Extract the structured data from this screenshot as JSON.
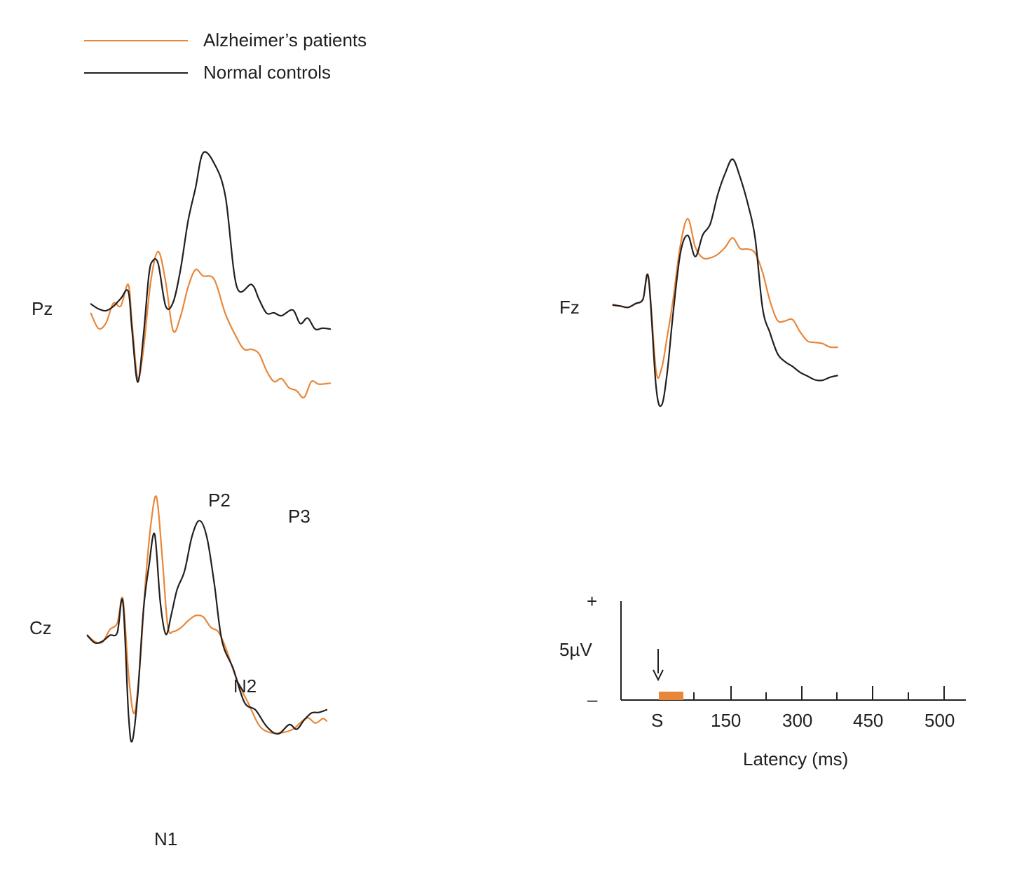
{
  "legend": [
    {
      "label": "Alzheimer’s patients",
      "color": "#e8873a"
    },
    {
      "label": "Normal controls",
      "color": "#231f20"
    }
  ],
  "chart_data": [
    {
      "type": "line",
      "channel": "Pz",
      "units": {
        "x": "ms",
        "y": "µV"
      },
      "series": [
        {
          "name": "Normal controls",
          "color": "#231f20",
          "x": [
            -100,
            -80,
            -60,
            -40,
            -20,
            0,
            10,
            25,
            40,
            55,
            65,
            80,
            100,
            120,
            140,
            160,
            180,
            200,
            230,
            260,
            290,
            330,
            350,
            370,
            390,
            410,
            440,
            460,
            480,
            500,
            520,
            540
          ],
          "y": [
            0.34,
            0.14,
            0.06,
            0.24,
            0.57,
            0.87,
            -0.73,
            -2.93,
            -1.09,
            1.53,
            2.14,
            2.03,
            0.26,
            0.41,
            1.81,
            3.82,
            5.21,
            6.67,
            6.23,
            4.84,
            1.08,
            1.16,
            0.53,
            -0.04,
            -0.03,
            -0.15,
            0.09,
            -0.48,
            -0.25,
            -0.71,
            -0.67,
            -0.71
          ]
        },
        {
          "name": "Alzheimer’s patients",
          "color": "#e8873a",
          "x": [
            -100,
            -80,
            -60,
            -40,
            -20,
            0,
            10,
            25,
            40,
            60,
            80,
            100,
            120,
            140,
            160,
            180,
            200,
            230,
            260,
            290,
            310,
            330,
            350,
            370,
            390,
            410,
            430,
            450,
            470,
            490,
            510,
            540
          ],
          "y": [
            -0.05,
            -0.68,
            -0.47,
            0.37,
            0.26,
            1.16,
            -0.44,
            -2.75,
            -1.65,
            1.27,
            2.54,
            1.28,
            -0.78,
            -0.17,
            1.05,
            1.78,
            1.52,
            1.37,
            -0.08,
            -1.07,
            -1.56,
            -1.56,
            -1.75,
            -2.46,
            -2.91,
            -2.79,
            -3.17,
            -3.29,
            -3.58,
            -2.91,
            -3.02,
            -2.98
          ]
        }
      ]
    },
    {
      "type": "line",
      "channel": "Fz",
      "units": {
        "x": "ms",
        "y": "µV"
      },
      "series": [
        {
          "name": "Normal controls",
          "color": "#231f20",
          "x": [
            -100,
            -80,
            -60,
            -40,
            -20,
            -5,
            15,
            30,
            45,
            60,
            80,
            100,
            120,
            140,
            160,
            180,
            200,
            220,
            240,
            260,
            280,
            300,
            320,
            340,
            360,
            380,
            400,
            420,
            440,
            460,
            480,
            500
          ],
          "y": [
            0.14,
            0.1,
            0.05,
            0.2,
            0.37,
            1.21,
            -3.08,
            -3.82,
            -2.51,
            -0.28,
            2.19,
            2.9,
            2.06,
            2.92,
            3.35,
            4.51,
            5.36,
            5.92,
            5.2,
            4.18,
            2.81,
            0.02,
            -0.97,
            -1.78,
            -2.1,
            -2.29,
            -2.52,
            -2.67,
            -2.82,
            -2.84,
            -2.72,
            -2.65
          ]
        },
        {
          "name": "Alzheimer’s patients",
          "color": "#e8873a",
          "x": [
            -100,
            -80,
            -60,
            -40,
            -20,
            -5,
            15,
            30,
            45,
            60,
            80,
            100,
            120,
            140,
            160,
            180,
            200,
            220,
            240,
            260,
            280,
            300,
            320,
            340,
            360,
            380,
            400,
            420,
            440,
            460,
            480,
            500
          ],
          "y": [
            0.17,
            0.1,
            0.05,
            0.19,
            0.36,
            1.22,
            -2.46,
            -2.36,
            -1.09,
            0.28,
            2.5,
            3.56,
            2.44,
            2.01,
            2.01,
            2.15,
            2.43,
            2.8,
            2.38,
            2.36,
            2.2,
            1.44,
            0.29,
            -0.47,
            -0.49,
            -0.43,
            -0.91,
            -1.28,
            -1.34,
            -1.38,
            -1.52,
            -1.53
          ]
        }
      ]
    },
    {
      "type": "line",
      "channel": "Cz",
      "units": {
        "x": "ms",
        "y": "µV"
      },
      "annotations": [
        "P2",
        "P3",
        "N1",
        "N2"
      ],
      "series": [
        {
          "name": "Normal controls",
          "color": "#231f20",
          "x": [
            -100,
            -80,
            -60,
            -40,
            -20,
            -5,
            10,
            20,
            35,
            50,
            65,
            80,
            95,
            110,
            125,
            140,
            160,
            180,
            200,
            220,
            240,
            260,
            290,
            320,
            350,
            380,
            410,
            440,
            460,
            480,
            500,
            520,
            540
          ],
          "y": [
            -0.03,
            -0.31,
            -0.25,
            -0.02,
            0.08,
            1.27,
            -3.06,
            -4.09,
            -2.24,
            0.96,
            2.69,
            3.87,
            1.26,
            0.02,
            0.81,
            1.75,
            2.46,
            3.8,
            4.4,
            3.74,
            1.92,
            -0.23,
            -1.3,
            -2.6,
            -2.9,
            -3.54,
            -3.82,
            -3.46,
            -3.64,
            -3.28,
            -3.01,
            -2.99,
            -2.89
          ]
        },
        {
          "name": "Alzheimer’s patients",
          "color": "#e8873a",
          "x": [
            -100,
            -80,
            -60,
            -40,
            -20,
            -5,
            10,
            25,
            40,
            55,
            70,
            85,
            100,
            115,
            130,
            150,
            170,
            190,
            210,
            230,
            250,
            270,
            300,
            330,
            360,
            390,
            420,
            450,
            470,
            490,
            510,
            530,
            540
          ],
          "y": [
            -0.01,
            -0.26,
            -0.29,
            0.2,
            0.45,
            1.38,
            -1.5,
            -3.03,
            -1.27,
            1.95,
            4.27,
            5.31,
            3.04,
            0.34,
            0.13,
            0.27,
            0.55,
            0.74,
            0.69,
            0.29,
            0.12,
            -0.5,
            -1.74,
            -2.62,
            -3.5,
            -3.77,
            -3.77,
            -3.64,
            -3.38,
            -3.2,
            -3.4,
            -3.23,
            -3.32
          ]
        }
      ]
    }
  ],
  "scale_bar": {
    "plus_label": "+",
    "amplitude_label": "5µV",
    "minus_label": "–",
    "stimulus_label": "S",
    "stimulus_duration_ms": 50,
    "stimulus_color": "#e8873a",
    "tick_labels": [
      "150",
      "300",
      "450",
      "500"
    ],
    "xlabel": "Latency (ms)"
  }
}
